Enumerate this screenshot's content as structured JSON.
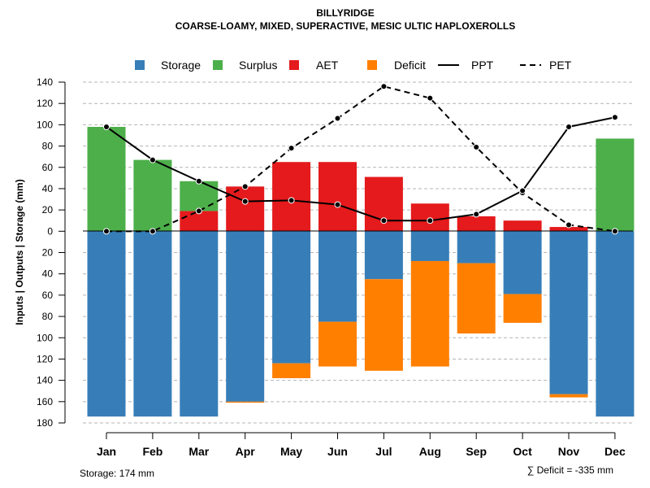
{
  "chart_data": {
    "type": "bar",
    "title": "BILLYRIDGE",
    "subtitle": "COARSE-LOAMY, MIXED, SUPERACTIVE, MESIC ULTIC HAPLOXEROLLS",
    "ylabel": "Inputs | Outputs | Storage    (mm)",
    "ylim": [
      -180,
      140
    ],
    "yticks": [
      140,
      120,
      100,
      80,
      60,
      40,
      20,
      0,
      -20,
      -40,
      -60,
      -80,
      -100,
      -120,
      -140,
      -160,
      -180
    ],
    "ytick_labels": [
      "140",
      "120",
      "100",
      "80",
      "60",
      "40",
      "20",
      "0",
      "20",
      "40",
      "60",
      "80",
      "100",
      "120",
      "140",
      "160",
      "180"
    ],
    "categories": [
      "Jan",
      "Feb",
      "Mar",
      "Apr",
      "May",
      "Jun",
      "Jul",
      "Aug",
      "Sep",
      "Oct",
      "Nov",
      "Dec"
    ],
    "series": [
      {
        "name": "Storage",
        "color": "#377eb8",
        "values": [
          -174,
          -174,
          -174,
          -160,
          -124,
          -85,
          -45,
          -28,
          -30,
          -59,
          -153,
          -174
        ]
      },
      {
        "name": "Surplus",
        "color": "#4daf4a",
        "values": [
          98,
          67,
          28,
          0,
          0,
          0,
          0,
          0,
          0,
          0,
          0,
          87
        ]
      },
      {
        "name": "AET",
        "color": "#e41a1c",
        "values": [
          0,
          0,
          19,
          42,
          65,
          65,
          51,
          26,
          14,
          10,
          4,
          0
        ]
      },
      {
        "name": "Deficit",
        "color": "#ff7f00",
        "values": [
          0,
          0,
          0,
          -1,
          -14,
          -42,
          -86,
          -99,
          -66,
          -27,
          -3,
          0
        ]
      },
      {
        "name": "PPT",
        "color": "#000000",
        "style": "solid",
        "values": [
          98,
          67,
          47,
          28,
          29,
          25,
          10,
          10,
          16,
          38,
          98,
          107
        ]
      },
      {
        "name": "PET",
        "color": "#000000",
        "style": "dashed",
        "values": [
          0,
          0,
          19,
          42,
          78,
          106,
          136,
          125,
          79,
          36,
          6,
          0
        ]
      }
    ],
    "legend": [
      "Storage",
      "Surplus",
      "AET",
      "Deficit",
      "PPT",
      "PET"
    ],
    "grid": true,
    "footer_left": "Storage: 174 mm",
    "footer_right": "∑ Deficit = -335 mm"
  }
}
